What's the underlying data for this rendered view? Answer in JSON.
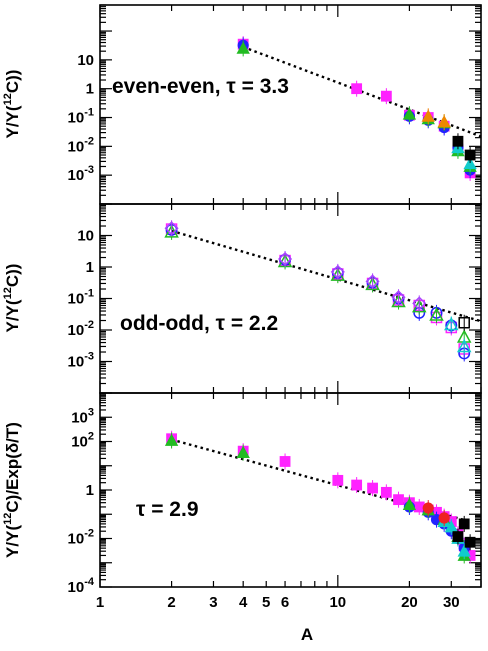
{
  "colors": {
    "black": "#000000",
    "magenta": "#ff22ff",
    "blue": "#2222ff",
    "green": "#22bb22",
    "cyan": "#11cccc",
    "orange": "#ee8800",
    "red": "#ee2222",
    "purple": "#aa44ff"
  },
  "chart_data": [
    {
      "type": "scatter",
      "panel": "top",
      "ylabel_main": "Y/Y(",
      "ylabel_sup": "12",
      "ylabel_elem": "C)",
      "ylabel_tail": ")",
      "annotation": "even-even, τ =  3.3",
      "xscale": "log",
      "yscale": "log",
      "xlim": [
        1,
        40
      ],
      "ylim": [
        0.0001,
        800
      ],
      "yticks": [
        {
          "value": 10,
          "label": "10"
        },
        {
          "value": 1,
          "label": "1"
        },
        {
          "value": 0.1,
          "base": "10",
          "exp": "-1"
        },
        {
          "value": 0.01,
          "base": "10",
          "exp": "-2"
        },
        {
          "value": 0.001,
          "base": "10",
          "exp": "-3"
        }
      ],
      "fit": {
        "x_from": 4,
        "x_to": 40,
        "y_from": 28,
        "y_to": 0.022
      },
      "series": [
        {
          "marker": "square",
          "color": "magenta",
          "filled": true,
          "x": [
            4,
            12,
            16,
            20,
            24,
            28,
            32,
            36
          ],
          "y": [
            35,
            1.0,
            0.55,
            0.12,
            0.1,
            0.05,
            0.008,
            0.0012
          ]
        },
        {
          "marker": "circle",
          "color": "blue",
          "filled": true,
          "x": [
            4,
            20,
            24,
            28,
            32,
            36
          ],
          "y": [
            32,
            0.11,
            0.08,
            0.045,
            0.009,
            0.0015
          ]
        },
        {
          "marker": "triangle",
          "color": "green",
          "filled": true,
          "x": [
            4,
            20,
            24,
            28,
            32,
            36
          ],
          "y": [
            25,
            0.13,
            0.09,
            0.065,
            0.007,
            0.002
          ]
        },
        {
          "marker": "triangle",
          "color": "cyan",
          "filled": true,
          "x": [
            32,
            36
          ],
          "y": [
            0.009,
            0.0025
          ]
        },
        {
          "marker": "square",
          "color": "black",
          "filled": true,
          "x": [
            32,
            36
          ],
          "y": [
            0.015,
            0.005
          ]
        },
        {
          "marker": "triangle",
          "color": "orange",
          "filled": true,
          "x": [
            24,
            28
          ],
          "y": [
            0.11,
            0.07
          ]
        }
      ]
    },
    {
      "type": "scatter",
      "panel": "middle",
      "ylabel_main": "Y/Y(",
      "ylabel_sup": "12",
      "ylabel_elem": "C)",
      "ylabel_tail": ")",
      "annotation": "odd-odd, τ =  2.2",
      "xscale": "log",
      "yscale": "log",
      "xlim": [
        1,
        40
      ],
      "ylim": [
        0.0001,
        100
      ],
      "yticks": [
        {
          "value": 10,
          "label": "10"
        },
        {
          "value": 1,
          "label": "1"
        },
        {
          "value": 0.1,
          "base": "10",
          "exp": "-1"
        },
        {
          "value": 0.01,
          "base": "10",
          "exp": "-2"
        },
        {
          "value": 0.001,
          "base": "10",
          "exp": "-3"
        }
      ],
      "fit": {
        "x_from": 2,
        "x_to": 40,
        "y_from": 14,
        "y_to": 0.019
      },
      "series": [
        {
          "marker": "square",
          "color": "magenta",
          "filled": false,
          "x": [
            2,
            6,
            10,
            14,
            18,
            22,
            26,
            30,
            34
          ],
          "y": [
            16,
            1.6,
            0.6,
            0.3,
            0.09,
            0.06,
            0.025,
            0.012,
            0.0025
          ]
        },
        {
          "marker": "circle",
          "color": "blue",
          "filled": false,
          "x": [
            2,
            6,
            10,
            14,
            18,
            22,
            26,
            30,
            34
          ],
          "y": [
            15,
            1.7,
            0.65,
            0.32,
            0.1,
            0.035,
            0.035,
            0.014,
            0.0018
          ]
        },
        {
          "marker": "triangle",
          "color": "green",
          "filled": false,
          "x": [
            2,
            6,
            10,
            14,
            18,
            22,
            26,
            34
          ],
          "y": [
            13,
            1.5,
            0.55,
            0.28,
            0.08,
            0.055,
            0.03,
            0.006
          ]
        },
        {
          "marker": "diamond",
          "color": "purple",
          "filled": false,
          "x": [
            2,
            6,
            10,
            14,
            18,
            22
          ],
          "y": [
            17,
            1.8,
            0.7,
            0.35,
            0.11,
            0.07
          ]
        },
        {
          "marker": "triangle",
          "color": "cyan",
          "filled": false,
          "x": [
            30,
            34
          ],
          "y": [
            0.015,
            0.003
          ]
        },
        {
          "marker": "square",
          "color": "black",
          "filled": false,
          "x": [
            34
          ],
          "y": [
            0.017
          ]
        }
      ]
    },
    {
      "type": "scatter",
      "panel": "bottom",
      "ylabel_main": "Y/Y(",
      "ylabel_sup": "12",
      "ylabel_elem": "C)/Exp(δ/T)",
      "annotation": "τ =  2.9",
      "xlabel": "A",
      "xscale": "log",
      "yscale": "log",
      "xlim": [
        1,
        40
      ],
      "ylim": [
        0.0001,
        10000
      ],
      "yticks": [
        {
          "value": 1000,
          "base": "10",
          "exp": "3"
        },
        {
          "value": 100,
          "base": "10",
          "exp": "2"
        },
        {
          "value": 1,
          "label": "1"
        },
        {
          "value": 0.01,
          "base": "10",
          "exp": "-2"
        },
        {
          "value": 0.0001,
          "base": "10",
          "exp": "-4"
        }
      ],
      "xticks": [
        {
          "value": 1,
          "label": "1"
        },
        {
          "value": 2,
          "label": "2"
        },
        {
          "value": 3,
          "label": "3"
        },
        {
          "value": 4,
          "label": "4"
        },
        {
          "value": 5,
          "label": "5"
        },
        {
          "value": 6,
          "label": "6"
        },
        {
          "value": 10,
          "label": "10"
        },
        {
          "value": 20,
          "label": "20"
        },
        {
          "value": 30,
          "label": "30"
        }
      ],
      "fit": {
        "x_from": 2,
        "x_to": 36,
        "y_from": 120,
        "y_to": 0.05
      },
      "series": [
        {
          "marker": "square",
          "color": "magenta",
          "filled": true,
          "x": [
            2,
            4,
            6,
            10,
            12,
            14,
            16,
            18,
            20,
            22,
            24,
            26,
            28,
            30,
            32,
            34,
            36
          ],
          "y": [
            130,
            40,
            15,
            2.5,
            1.6,
            1.2,
            0.8,
            0.4,
            0.3,
            0.2,
            0.15,
            0.12,
            0.08,
            0.05,
            0.015,
            0.005,
            0.002
          ]
        },
        {
          "marker": "circle",
          "color": "blue",
          "filled": true,
          "x": [
            20,
            24,
            26,
            28,
            30,
            32,
            34
          ],
          "y": [
            0.2,
            0.12,
            0.06,
            0.04,
            0.02,
            0.01,
            0.004
          ]
        },
        {
          "marker": "triangle",
          "color": "green",
          "filled": true,
          "x": [
            2,
            4,
            20,
            24,
            28,
            32,
            34
          ],
          "y": [
            110,
            35,
            0.25,
            0.15,
            0.06,
            0.012,
            0.002
          ]
        },
        {
          "marker": "triangle",
          "color": "cyan",
          "filled": true,
          "x": [
            28,
            30,
            32,
            34
          ],
          "y": [
            0.05,
            0.03,
            0.01,
            0.003
          ]
        },
        {
          "marker": "square",
          "color": "black",
          "filled": true,
          "x": [
            32,
            34,
            36
          ],
          "y": [
            0.012,
            0.04,
            0.007
          ]
        },
        {
          "marker": "circle",
          "color": "red",
          "filled": true,
          "x": [
            24,
            28
          ],
          "y": [
            0.18,
            0.07
          ]
        }
      ]
    }
  ]
}
